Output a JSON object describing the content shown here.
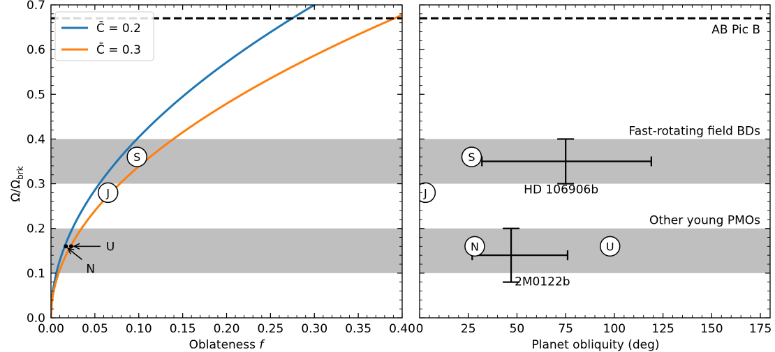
{
  "chart_data": [
    {
      "type": "line",
      "xlabel": "Oblateness",
      "xlabel_italic": "f",
      "ylabel_main": "Ω/Ω",
      "ylabel_sub": "brk",
      "xlim": [
        0,
        0.4
      ],
      "ylim": [
        0,
        0.7
      ],
      "x_ticks": [
        0.0,
        0.05,
        0.1,
        0.15,
        0.2,
        0.25,
        0.3,
        0.35,
        0.4
      ],
      "x_tick_labels": [
        "0.00",
        "0.05",
        "0.10",
        "0.15",
        "0.20",
        "0.25",
        "0.30",
        "0.35",
        "0.40"
      ],
      "y_ticks": [
        0.0,
        0.1,
        0.2,
        0.3,
        0.4,
        0.5,
        0.6,
        0.7
      ],
      "y_tick_labels": [
        "0.0",
        "0.1",
        "0.2",
        "0.3",
        "0.4",
        "0.5",
        "0.6",
        "0.7"
      ],
      "grid": false,
      "legend_position": "top-left",
      "series": [
        {
          "name": "C̄ = 0.2",
          "color": "#1f77b4",
          "coef": 1.2779
        },
        {
          "name": "C̄ = 0.3",
          "color": "#ff7f0e",
          "coef": 1.0711
        }
      ],
      "bands": [
        {
          "ymin": 0.1,
          "ymax": 0.2,
          "color": "#bfbfbf"
        },
        {
          "ymin": 0.3,
          "ymax": 0.4,
          "color": "#bfbfbf"
        }
      ],
      "hline": {
        "y": 0.67,
        "color": "#000000",
        "style": "dashed"
      },
      "planets": [
        {
          "letter": "J",
          "x": 0.065,
          "y": 0.28
        },
        {
          "letter": "S",
          "x": 0.098,
          "y": 0.36
        }
      ],
      "dots": [
        {
          "name": "N",
          "x": 0.017,
          "y": 0.16
        },
        {
          "name": "U",
          "x": 0.023,
          "y": 0.16
        }
      ],
      "arrow_labels": [
        {
          "text": "U",
          "target_x": 0.023,
          "target_y": 0.16
        },
        {
          "text": "N",
          "target_x": 0.017,
          "target_y": 0.16
        }
      ]
    },
    {
      "type": "scatter",
      "xlabel": "Planet obliquity (deg)",
      "xlim": [
        0,
        180
      ],
      "ylim": [
        0,
        0.7
      ],
      "x_ticks": [
        0,
        25,
        50,
        75,
        100,
        125,
        150,
        175
      ],
      "x_tick_labels": [
        "0",
        "25",
        "50",
        "75",
        "100",
        "125",
        "150",
        "175"
      ],
      "grid": false,
      "bands": [
        {
          "ymin": 0.1,
          "ymax": 0.2,
          "color": "#bfbfbf",
          "label": "Other young PMOs"
        },
        {
          "ymin": 0.3,
          "ymax": 0.4,
          "color": "#bfbfbf",
          "label": "Fast-rotating field BDs"
        }
      ],
      "hline": {
        "y": 0.67,
        "color": "#000000",
        "style": "dashed",
        "label": "AB Pic B"
      },
      "planets": [
        {
          "letter": "J",
          "x": 3,
          "y": 0.28
        },
        {
          "letter": "S",
          "x": 26.7,
          "y": 0.36
        },
        {
          "letter": "N",
          "x": 28.3,
          "y": 0.16
        },
        {
          "letter": "U",
          "x": 97.8,
          "y": 0.16
        }
      ],
      "errorbars": [
        {
          "label": "HD 106906b",
          "x": 75,
          "xmin": 32,
          "xmax": 119,
          "y": 0.35,
          "ymin": 0.3,
          "ymax": 0.4
        },
        {
          "label": "2M0122b",
          "x": 47,
          "xmin": 27,
          "xmax": 76,
          "y": 0.14,
          "ymin": 0.08,
          "ymax": 0.2
        }
      ]
    }
  ]
}
